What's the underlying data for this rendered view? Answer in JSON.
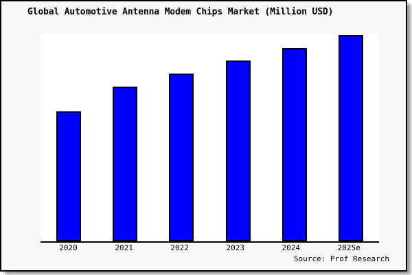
{
  "title": "Global Automotive Antenna Modem Chips Market (Million USD)",
  "source_note": "Source: Prof Research",
  "colors": {
    "card_background": "#f7f7f7",
    "plot_background": "#ffffff",
    "bar_fill": "#0000ff",
    "bar_border": "#000000",
    "card_border": "#000000",
    "text": "#000000",
    "shadow": "#464646"
  },
  "chart_data": {
    "type": "bar",
    "title": "Global Automotive Antenna Modem Chips Market (Million USD)",
    "categories": [
      "2020",
      "2021",
      "2022",
      "2023",
      "2024",
      "2025e"
    ],
    "values": [
      63,
      75,
      81.3,
      87.7,
      93.7,
      100
    ],
    "values_note": "relative bar heights as % of tallest bar (2025e); y-axis has no tick labels or gridlines in source image",
    "xlabel": "",
    "ylabel": "",
    "ylim": [
      0,
      100
    ],
    "grid": false,
    "legend": "none",
    "bar_color": "#0000ff",
    "bar_border_color": "#000000",
    "source_note": "Source: Prof Research"
  }
}
